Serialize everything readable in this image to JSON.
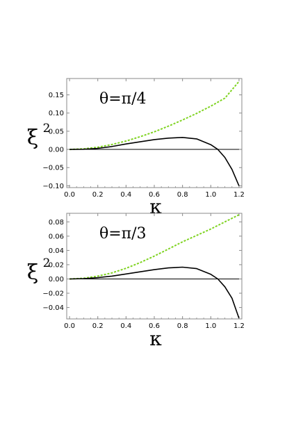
{
  "chart_data": [
    {
      "type": "line",
      "panel": "top",
      "annotation": "θ=π/4",
      "xlabel": "κ",
      "ylabel": "ξ",
      "ylabel_sup": "2",
      "xlim": [
        -0.02,
        1.22
      ],
      "ylim": [
        -0.105,
        0.195
      ],
      "x_ticks": [
        0.0,
        0.2,
        0.4,
        0.6,
        0.8,
        1.0,
        1.2
      ],
      "x_tick_labels": [
        "0.0",
        "0.2",
        "0.4",
        "0.6",
        "0.8",
        "1.0",
        "1.2"
      ],
      "y_ticks": [
        -0.1,
        -0.05,
        0.0,
        0.05,
        0.1,
        0.15
      ],
      "y_tick_labels": [
        "−0.10",
        "−0.05",
        "0.00",
        "0.05",
        "0.10",
        "0.15"
      ],
      "zero_line": true,
      "grid": false,
      "series": [
        {
          "style": "dashed",
          "color": "#7fd321",
          "x": [
            0.0,
            0.1,
            0.2,
            0.3,
            0.4,
            0.5,
            0.6,
            0.7,
            0.8,
            0.9,
            1.0,
            1.1,
            1.2
          ],
          "y": [
            0.0,
            0.0016,
            0.006,
            0.0135,
            0.023,
            0.035,
            0.0485,
            0.064,
            0.081,
            0.099,
            0.119,
            0.141,
            0.187
          ]
        },
        {
          "style": "solid",
          "color": "#000000",
          "x": [
            0.0,
            0.1,
            0.2,
            0.3,
            0.4,
            0.5,
            0.6,
            0.7,
            0.8,
            0.9,
            1.0,
            1.05,
            1.1,
            1.15,
            1.2
          ],
          "y": [
            0.0,
            0.0005,
            0.003,
            0.008,
            0.015,
            0.021,
            0.027,
            0.031,
            0.033,
            0.029,
            0.013,
            0.0,
            -0.022,
            -0.055,
            -0.1
          ]
        }
      ]
    },
    {
      "type": "line",
      "panel": "bottom",
      "annotation": "θ=π/3",
      "xlabel": "κ",
      "ylabel": "ξ",
      "ylabel_sup": "2",
      "xlim": [
        -0.02,
        1.22
      ],
      "ylim": [
        -0.056,
        0.092
      ],
      "x_ticks": [
        0.0,
        0.2,
        0.4,
        0.6,
        0.8,
        1.0,
        1.2
      ],
      "x_tick_labels": [
        "0.0",
        "0.2",
        "0.4",
        "0.6",
        "0.8",
        "1.0",
        "1.2"
      ],
      "y_ticks": [
        -0.04,
        -0.02,
        0.0,
        0.02,
        0.04,
        0.06,
        0.08
      ],
      "y_tick_labels": [
        "−0.04",
        "−0.02",
        "0.00",
        "0.02",
        "0.04",
        "0.06",
        "0.08"
      ],
      "zero_line": true,
      "grid": false,
      "series": [
        {
          "style": "dashed",
          "color": "#7fd321",
          "x": [
            0.0,
            0.1,
            0.2,
            0.3,
            0.4,
            0.5,
            0.6,
            0.7,
            0.8,
            0.9,
            1.0,
            1.1,
            1.2
          ],
          "y": [
            0.0,
            0.001,
            0.004,
            0.0085,
            0.015,
            0.023,
            0.032,
            0.042,
            0.052,
            0.061,
            0.07,
            0.08,
            0.09
          ]
        },
        {
          "style": "solid",
          "color": "#000000",
          "x": [
            0.0,
            0.1,
            0.2,
            0.3,
            0.4,
            0.5,
            0.6,
            0.7,
            0.8,
            0.9,
            1.0,
            1.05,
            1.1,
            1.15,
            1.2
          ],
          "y": [
            0.0,
            0.0004,
            0.0018,
            0.004,
            0.007,
            0.01,
            0.013,
            0.0155,
            0.0165,
            0.0145,
            0.0065,
            0.0,
            -0.011,
            -0.027,
            -0.055
          ]
        }
      ]
    }
  ]
}
